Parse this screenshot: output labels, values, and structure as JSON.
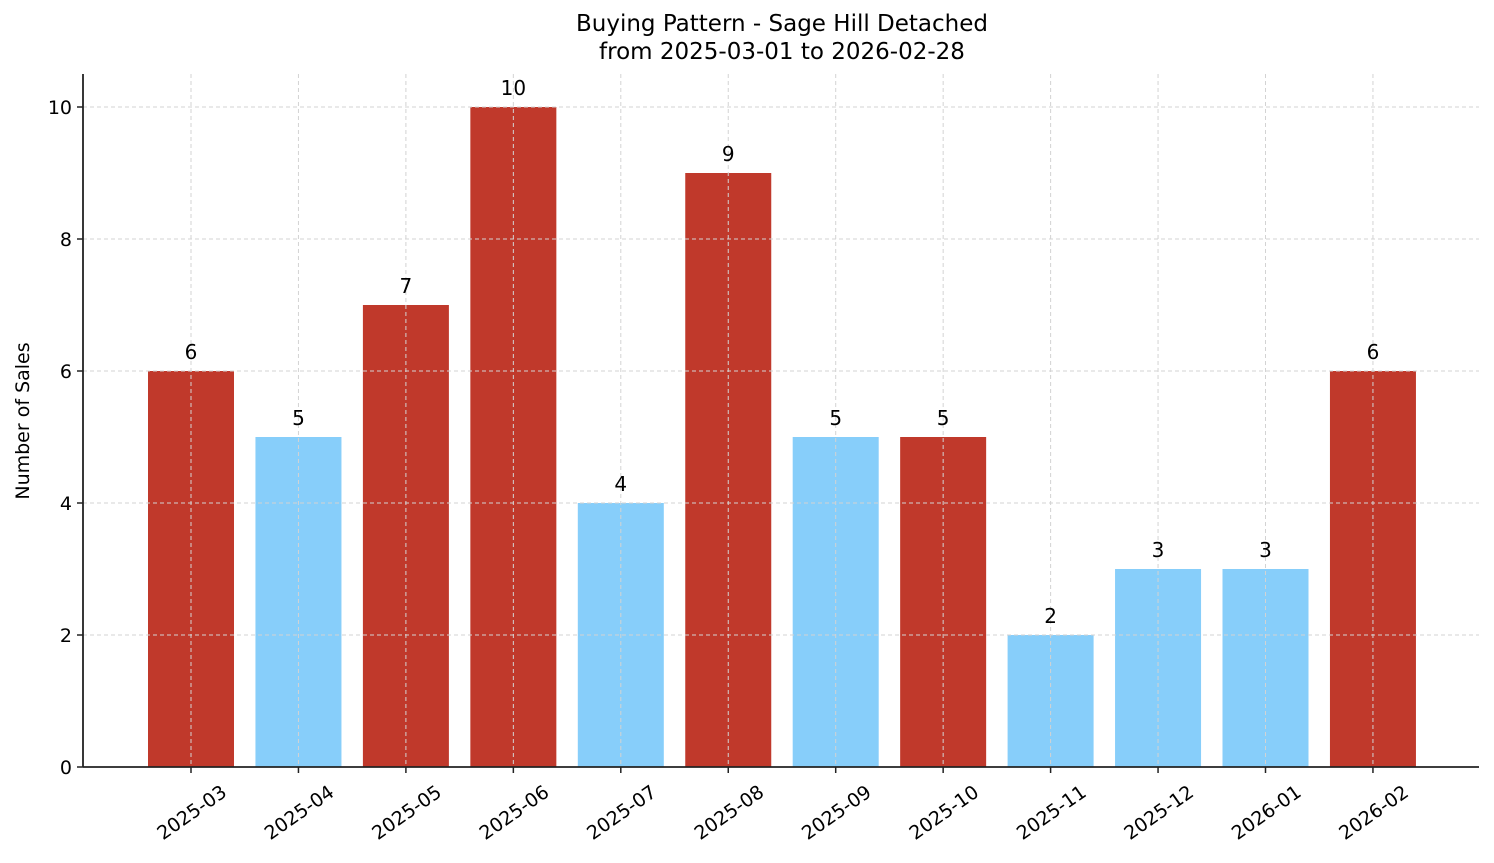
{
  "chart_data": {
    "type": "bar",
    "title": "Buying Pattern - Sage Hill Detached",
    "subtitle": "from 2025-03-01 to 2026-02-28",
    "xlabel": "",
    "ylabel": "Number of Sales",
    "categories": [
      "2025-03",
      "2025-04",
      "2025-05",
      "2025-06",
      "2025-07",
      "2025-08",
      "2025-09",
      "2025-10",
      "2025-11",
      "2025-12",
      "2026-01",
      "2026-02"
    ],
    "values": [
      6,
      5,
      7,
      10,
      4,
      9,
      5,
      5,
      2,
      3,
      3,
      6
    ],
    "bar_colors": [
      "#c0392b",
      "#87cefa",
      "#c0392b",
      "#c0392b",
      "#87cefa",
      "#c0392b",
      "#87cefa",
      "#c0392b",
      "#87cefa",
      "#87cefa",
      "#87cefa",
      "#c0392b"
    ],
    "ylim": [
      0,
      10.5
    ],
    "yticks": [
      0,
      2,
      4,
      6,
      8,
      10
    ],
    "grid": true,
    "legend": null,
    "data_labels": true
  },
  "colors": {
    "high": "#c0392b",
    "low": "#87cefa",
    "grid": "#d3d3d3",
    "axis": "#222222"
  }
}
